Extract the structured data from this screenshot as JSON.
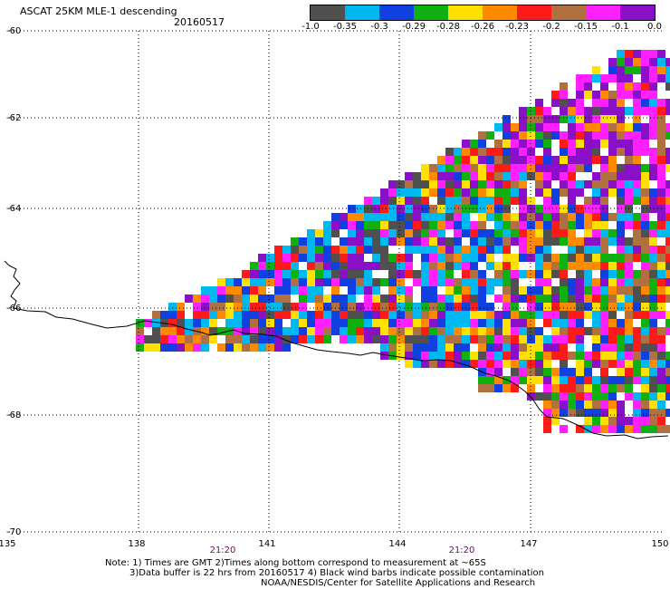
{
  "header": {
    "title": "ASCAT 25KM MLE-1 descending",
    "date": "20160517"
  },
  "colorbar": {
    "colors": [
      "#505050",
      "#00b8f0",
      "#1040e0",
      "#10b010",
      "#ffe000",
      "#ff8a00",
      "#ff1a1a",
      "#b07040",
      "#ff20ff",
      "#8a10c8"
    ],
    "labels": [
      "-1.0",
      "-0.35",
      "-0.3",
      "-0.29",
      "-0.28",
      "-0.26",
      "-0.23",
      "-0.2",
      "-0.15",
      "-0.1",
      "0.0"
    ]
  },
  "axes": {
    "lat_labels": [
      "-60",
      "-62",
      "-64",
      "-66",
      "-68",
      "-70"
    ],
    "lon_labels": [
      "135",
      "138",
      "141",
      "144",
      "147",
      "150"
    ],
    "time_labels": [
      "21:20",
      "21:20"
    ]
  },
  "notes": {
    "line1": "Note: 1) Times are GMT 2)Times along bottom correspond to measurement at ~65S",
    "line2": "3)Data buffer is 22 hrs from 20160517 4) Black wind barbs indicate possible contamination",
    "credit": "NOAA/NESDIS/Center for Satellite Applications and Research"
  }
}
